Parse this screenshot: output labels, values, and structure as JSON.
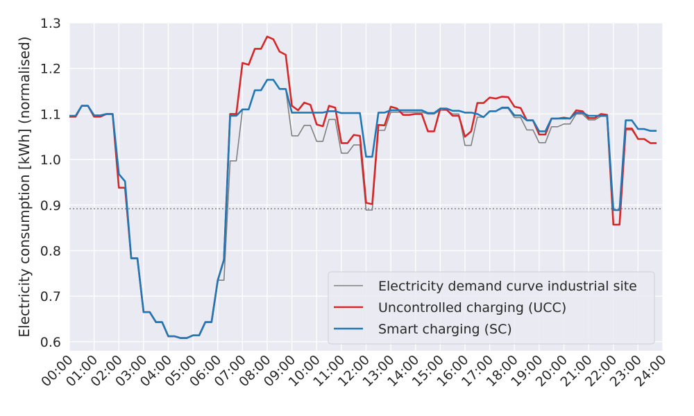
{
  "chart_data": {
    "type": "line",
    "title": "",
    "xlabel": "",
    "ylabel": "Electricity consumption [kWh] (normalised)",
    "xlim": [
      0,
      24
    ],
    "ylim": [
      0.58,
      1.3
    ],
    "x_ticks": [
      "00:00",
      "01:00",
      "02:00",
      "03:00",
      "04:00",
      "05:00",
      "06:00",
      "07:00",
      "08:00",
      "09:00",
      "10:00",
      "11:00",
      "12:00",
      "13:00",
      "14:00",
      "15:00",
      "16:00",
      "17:00",
      "18:00",
      "19:00",
      "20:00",
      "21:00",
      "22:00",
      "23:00",
      "24:00"
    ],
    "y_ticks": [
      "0.6",
      "0.7",
      "0.8",
      "0.9",
      "1.0",
      "1.1",
      "1.2",
      "1.3"
    ],
    "grid": true,
    "legend_position": "lower-right",
    "reference_line": {
      "y": 0.892,
      "style": "dotted"
    },
    "series": [
      {
        "name": "Electricity demand curve industrial site",
        "color": "#7f7f7f",
        "points": [
          [
            0,
            1.095
          ],
          [
            0.25,
            1.095
          ],
          [
            0.5,
            1.118
          ],
          [
            0.75,
            1.118
          ],
          [
            1,
            1.097
          ],
          [
            1.25,
            1.097
          ],
          [
            1.5,
            1.1
          ],
          [
            1.75,
            1.1
          ],
          [
            2,
            0.968
          ],
          [
            2.25,
            0.952
          ],
          [
            2.5,
            0.783
          ],
          [
            2.75,
            0.783
          ],
          [
            3,
            0.665
          ],
          [
            3.25,
            0.665
          ],
          [
            3.5,
            0.643
          ],
          [
            3.75,
            0.643
          ],
          [
            4,
            0.612
          ],
          [
            4.25,
            0.612
          ],
          [
            4.5,
            0.608
          ],
          [
            4.75,
            0.608
          ],
          [
            5,
            0.614
          ],
          [
            5.25,
            0.614
          ],
          [
            5.5,
            0.643
          ],
          [
            5.75,
            0.643
          ],
          [
            6,
            0.735
          ],
          [
            6.25,
            0.735
          ],
          [
            6.5,
            0.997
          ],
          [
            6.75,
            0.997
          ],
          [
            7,
            1.11
          ],
          [
            7.25,
            1.11
          ],
          [
            7.5,
            1.152
          ],
          [
            7.75,
            1.152
          ],
          [
            8,
            1.175
          ],
          [
            8.25,
            1.175
          ],
          [
            8.5,
            1.155
          ],
          [
            8.75,
            1.155
          ],
          [
            9,
            1.052
          ],
          [
            9.25,
            1.052
          ],
          [
            9.5,
            1.075
          ],
          [
            9.75,
            1.075
          ],
          [
            10,
            1.04
          ],
          [
            10.25,
            1.04
          ],
          [
            10.5,
            1.088
          ],
          [
            10.75,
            1.088
          ],
          [
            11,
            1.014
          ],
          [
            11.25,
            1.014
          ],
          [
            11.5,
            1.032
          ],
          [
            11.75,
            1.032
          ],
          [
            12,
            0.889
          ],
          [
            12.25,
            0.889
          ],
          [
            12.5,
            1.064
          ],
          [
            12.75,
            1.064
          ],
          [
            13,
            1.104
          ],
          [
            13.25,
            1.104
          ],
          [
            13.5,
            1.104
          ],
          [
            13.75,
            1.104
          ],
          [
            14,
            1.104
          ],
          [
            14.25,
            1.104
          ],
          [
            14.5,
            1.1
          ],
          [
            14.75,
            1.1
          ],
          [
            15,
            1.108
          ],
          [
            15.25,
            1.108
          ],
          [
            15.5,
            1.1
          ],
          [
            15.75,
            1.1
          ],
          [
            16,
            1.031
          ],
          [
            16.25,
            1.031
          ],
          [
            16.5,
            1.093
          ],
          [
            16.75,
            1.093
          ],
          [
            17,
            1.106
          ],
          [
            17.25,
            1.106
          ],
          [
            17.5,
            1.112
          ],
          [
            17.75,
            1.112
          ],
          [
            18,
            1.092
          ],
          [
            18.25,
            1.092
          ],
          [
            18.5,
            1.065
          ],
          [
            18.75,
            1.065
          ],
          [
            19,
            1.037
          ],
          [
            19.25,
            1.037
          ],
          [
            19.5,
            1.072
          ],
          [
            19.75,
            1.072
          ],
          [
            20,
            1.078
          ],
          [
            20.25,
            1.078
          ],
          [
            20.5,
            1.1
          ],
          [
            20.75,
            1.1
          ],
          [
            21,
            1.087
          ],
          [
            21.25,
            1.087
          ],
          [
            21.5,
            1.095
          ],
          [
            21.75,
            1.095
          ],
          [
            22,
            0.857
          ],
          [
            22.25,
            0.857
          ],
          [
            22.5,
            1.065
          ],
          [
            22.75,
            1.065
          ],
          [
            23,
            1.045
          ],
          [
            23.25,
            1.045
          ],
          [
            23.5,
            1.036
          ],
          [
            23.75,
            1.036
          ]
        ]
      },
      {
        "name": "Uncontrolled charging (UCC)",
        "color": "#d62728",
        "points": [
          [
            0,
            1.094
          ],
          [
            0.25,
            1.094
          ],
          [
            0.5,
            1.118
          ],
          [
            0.75,
            1.118
          ],
          [
            1,
            1.094
          ],
          [
            1.25,
            1.094
          ],
          [
            1.5,
            1.1
          ],
          [
            1.75,
            1.1
          ],
          [
            2,
            0.938
          ],
          [
            2.25,
            0.938
          ],
          [
            2.5,
            0.783
          ],
          [
            2.75,
            0.783
          ],
          [
            3,
            0.665
          ],
          [
            3.25,
            0.665
          ],
          [
            3.5,
            0.643
          ],
          [
            3.75,
            0.643
          ],
          [
            4,
            0.612
          ],
          [
            4.25,
            0.612
          ],
          [
            4.5,
            0.608
          ],
          [
            4.75,
            0.608
          ],
          [
            5,
            0.614
          ],
          [
            5.25,
            0.614
          ],
          [
            5.5,
            0.643
          ],
          [
            5.75,
            0.643
          ],
          [
            6,
            0.735
          ],
          [
            6.25,
            0.78
          ],
          [
            6.5,
            1.1
          ],
          [
            6.75,
            1.1
          ],
          [
            7,
            1.212
          ],
          [
            7.25,
            1.208
          ],
          [
            7.5,
            1.243
          ],
          [
            7.75,
            1.243
          ],
          [
            8,
            1.27
          ],
          [
            8.25,
            1.264
          ],
          [
            8.5,
            1.237
          ],
          [
            8.75,
            1.23
          ],
          [
            9,
            1.118
          ],
          [
            9.25,
            1.108
          ],
          [
            9.5,
            1.125
          ],
          [
            9.75,
            1.12
          ],
          [
            10,
            1.077
          ],
          [
            10.25,
            1.073
          ],
          [
            10.5,
            1.118
          ],
          [
            10.75,
            1.114
          ],
          [
            11,
            1.036
          ],
          [
            11.25,
            1.036
          ],
          [
            11.5,
            1.054
          ],
          [
            11.75,
            1.052
          ],
          [
            12,
            0.905
          ],
          [
            12.25,
            0.902
          ],
          [
            12.5,
            1.076
          ],
          [
            12.75,
            1.075
          ],
          [
            13,
            1.116
          ],
          [
            13.25,
            1.112
          ],
          [
            13.5,
            1.098
          ],
          [
            13.75,
            1.098
          ],
          [
            14,
            1.1
          ],
          [
            14.25,
            1.1
          ],
          [
            14.5,
            1.062
          ],
          [
            14.75,
            1.062
          ],
          [
            15,
            1.112
          ],
          [
            15.25,
            1.11
          ],
          [
            15.5,
            1.096
          ],
          [
            15.75,
            1.096
          ],
          [
            16,
            1.05
          ],
          [
            16.25,
            1.062
          ],
          [
            16.5,
            1.124
          ],
          [
            16.75,
            1.124
          ],
          [
            17,
            1.136
          ],
          [
            17.25,
            1.134
          ],
          [
            17.5,
            1.138
          ],
          [
            17.75,
            1.137
          ],
          [
            18,
            1.116
          ],
          [
            18.25,
            1.113
          ],
          [
            18.5,
            1.086
          ],
          [
            18.75,
            1.086
          ],
          [
            19,
            1.055
          ],
          [
            19.25,
            1.055
          ],
          [
            19.5,
            1.09
          ],
          [
            19.75,
            1.09
          ],
          [
            20,
            1.092
          ],
          [
            20.25,
            1.09
          ],
          [
            20.5,
            1.108
          ],
          [
            20.75,
            1.106
          ],
          [
            21,
            1.091
          ],
          [
            21.25,
            1.091
          ],
          [
            21.5,
            1.1
          ],
          [
            21.75,
            1.098
          ],
          [
            22,
            0.857
          ],
          [
            22.25,
            0.857
          ],
          [
            22.5,
            1.068
          ],
          [
            22.75,
            1.068
          ],
          [
            23,
            1.045
          ],
          [
            23.25,
            1.045
          ],
          [
            23.5,
            1.036
          ],
          [
            23.75,
            1.036
          ]
        ]
      },
      {
        "name": "Smart charging (SC)",
        "color": "#1f77b4",
        "points": [
          [
            0,
            1.096
          ],
          [
            0.25,
            1.096
          ],
          [
            0.5,
            1.118
          ],
          [
            0.75,
            1.118
          ],
          [
            1,
            1.097
          ],
          [
            1.25,
            1.097
          ],
          [
            1.5,
            1.1
          ],
          [
            1.75,
            1.1
          ],
          [
            2,
            0.968
          ],
          [
            2.25,
            0.952
          ],
          [
            2.5,
            0.783
          ],
          [
            2.75,
            0.783
          ],
          [
            3,
            0.665
          ],
          [
            3.25,
            0.665
          ],
          [
            3.5,
            0.643
          ],
          [
            3.75,
            0.643
          ],
          [
            4,
            0.612
          ],
          [
            4.25,
            0.612
          ],
          [
            4.5,
            0.608
          ],
          [
            4.75,
            0.608
          ],
          [
            5,
            0.614
          ],
          [
            5.25,
            0.614
          ],
          [
            5.5,
            0.643
          ],
          [
            5.75,
            0.643
          ],
          [
            6,
            0.735
          ],
          [
            6.25,
            0.78
          ],
          [
            6.5,
            1.096
          ],
          [
            6.75,
            1.096
          ],
          [
            7,
            1.11
          ],
          [
            7.25,
            1.11
          ],
          [
            7.5,
            1.152
          ],
          [
            7.75,
            1.152
          ],
          [
            8,
            1.175
          ],
          [
            8.25,
            1.175
          ],
          [
            8.5,
            1.155
          ],
          [
            8.75,
            1.155
          ],
          [
            9,
            1.103
          ],
          [
            9.25,
            1.103
          ],
          [
            9.5,
            1.103
          ],
          [
            9.75,
            1.103
          ],
          [
            10,
            1.103
          ],
          [
            10.25,
            1.103
          ],
          [
            10.5,
            1.106
          ],
          [
            10.75,
            1.106
          ],
          [
            11,
            1.102
          ],
          [
            11.25,
            1.102
          ],
          [
            11.5,
            1.102
          ],
          [
            11.75,
            1.102
          ],
          [
            12,
            1.006
          ],
          [
            12.25,
            1.006
          ],
          [
            12.5,
            1.103
          ],
          [
            12.75,
            1.103
          ],
          [
            13,
            1.108
          ],
          [
            13.25,
            1.108
          ],
          [
            13.5,
            1.108
          ],
          [
            13.75,
            1.108
          ],
          [
            14,
            1.108
          ],
          [
            14.25,
            1.108
          ],
          [
            14.5,
            1.102
          ],
          [
            14.75,
            1.102
          ],
          [
            15,
            1.112
          ],
          [
            15.25,
            1.112
          ],
          [
            15.5,
            1.107
          ],
          [
            15.75,
            1.107
          ],
          [
            16,
            1.103
          ],
          [
            16.25,
            1.103
          ],
          [
            16.5,
            1.1
          ],
          [
            16.75,
            1.093
          ],
          [
            17,
            1.106
          ],
          [
            17.25,
            1.106
          ],
          [
            17.5,
            1.114
          ],
          [
            17.75,
            1.114
          ],
          [
            18,
            1.097
          ],
          [
            18.25,
            1.097
          ],
          [
            18.5,
            1.086
          ],
          [
            18.75,
            1.086
          ],
          [
            19,
            1.062
          ],
          [
            19.25,
            1.062
          ],
          [
            19.5,
            1.09
          ],
          [
            19.75,
            1.09
          ],
          [
            20,
            1.09
          ],
          [
            20.25,
            1.09
          ],
          [
            20.5,
            1.103
          ],
          [
            20.75,
            1.103
          ],
          [
            21,
            1.096
          ],
          [
            21.25,
            1.096
          ],
          [
            21.5,
            1.096
          ],
          [
            21.75,
            1.096
          ],
          [
            22,
            0.889
          ],
          [
            22.25,
            0.889
          ],
          [
            22.5,
            1.086
          ],
          [
            22.75,
            1.086
          ],
          [
            23,
            1.067
          ],
          [
            23.25,
            1.067
          ],
          [
            23.5,
            1.063
          ],
          [
            23.75,
            1.063
          ]
        ]
      }
    ]
  }
}
